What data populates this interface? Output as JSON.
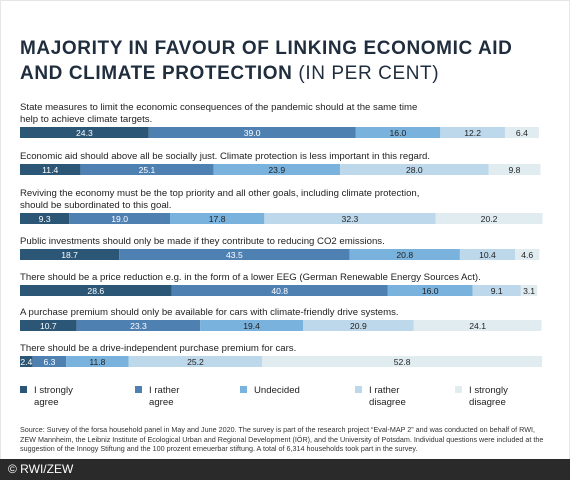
{
  "title_bold": "MAJORITY IN FAVOUR OF LINKING ECONOMIC AID AND CLIMATE PROTECTION",
  "title_normal": " (IN PER CENT)",
  "footer": "Source: Survey of the forsa household panel in May and June 2020. The survey is part of the research project “Eval-MAP 2” and was conducted on behalf of RWI, ZEW Mannheim, the Leibniz Institute of Ecological Urban and Regional Development (IÖR), and the University of Potsdam. Individual questions were included at the suggestion of the Innogy Stiftung and the 100 prozent erneuerbar stiftung. A total of 6,314 households took part in the survey.",
  "copyright": "© RWI/ZEW",
  "colors": [
    "#2b5676",
    "#4f80b2",
    "#79b2dc",
    "#bcd8ea",
    "#e1ecf1"
  ],
  "chart_data": {
    "type": "bar",
    "orientation": "horizontal",
    "stacked": true,
    "xlim": [
      0,
      100
    ],
    "legend_position": "bottom",
    "series": [
      {
        "name": "I strongly\nagree"
      },
      {
        "name": "I rather\nagree"
      },
      {
        "name": "Undecided"
      },
      {
        "name": "I rather\ndisagree"
      },
      {
        "name": "I strongly\ndisagree"
      }
    ],
    "categories": [
      {
        "label": "State measures to limit the economic consequences of the pandemic should at the same time\nhelp to achieve climate targets.",
        "values": [
          24.3,
          39.0,
          16.0,
          12.2,
          6.4
        ]
      },
      {
        "label": "Economic aid should above all be socially just. Climate protection is less important in this regard.",
        "values": [
          11.4,
          25.1,
          23.9,
          28.0,
          9.8
        ]
      },
      {
        "label": "Reviving the economy must be the top priority and all other goals, including climate protection,\nshould be subordinated to this goal.",
        "values": [
          9.3,
          19.0,
          17.8,
          32.3,
          20.2
        ]
      },
      {
        "label": "Public investments should only be made if they contribute to reducing CO2 emissions.",
        "values": [
          18.7,
          43.5,
          20.8,
          10.4,
          4.6
        ]
      },
      {
        "label": "There should be a price reduction e.g. in the form of a lower EEG (German Renewable Energy Sources Act).",
        "values": [
          28.6,
          40.8,
          16.0,
          9.1,
          3.1
        ]
      },
      {
        "label": "A purchase premium should only be available for cars with climate-friendly drive systems.",
        "values": [
          10.7,
          23.3,
          19.4,
          20.9,
          24.1
        ]
      },
      {
        "label": "There should be a drive-independent purchase premium for cars.",
        "values": [
          2.4,
          6.3,
          11.8,
          25.2,
          52.8
        ]
      }
    ]
  }
}
